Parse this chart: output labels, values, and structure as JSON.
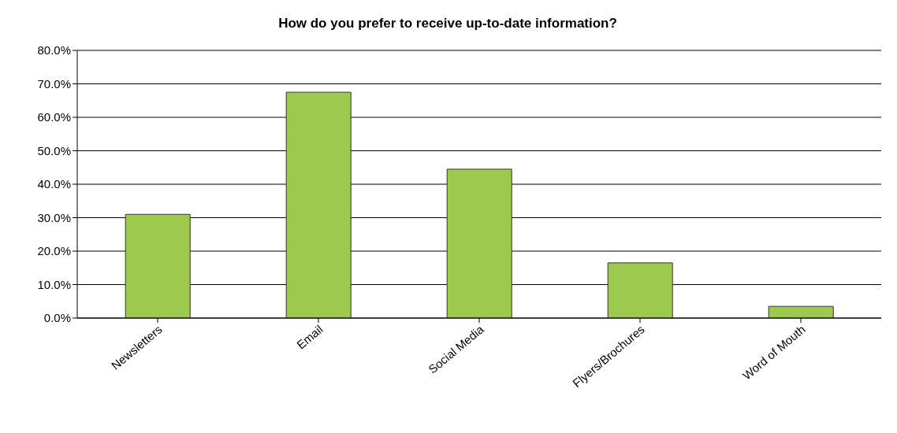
{
  "chart_data": {
    "type": "bar",
    "title": "How do you prefer to receive up-to-date information?",
    "categories": [
      "Newsletters",
      "Email",
      "Social Media",
      "Flyers/Brochures",
      "Word of Mouth"
    ],
    "values": [
      31,
      67.5,
      44.5,
      16.5,
      3.5
    ],
    "color": "#9cc94e",
    "ylim": [
      0,
      80
    ],
    "yticks": [
      {
        "value": 0,
        "label": "0.0%"
      },
      {
        "value": 10,
        "label": "10.0%"
      },
      {
        "value": 20,
        "label": "20.0%"
      },
      {
        "value": 30,
        "label": "30.0%"
      },
      {
        "value": 40,
        "label": "40.0%"
      },
      {
        "value": 50,
        "label": "50.0%"
      },
      {
        "value": 60,
        "label": "60.0%"
      },
      {
        "value": 70,
        "label": "70.0%"
      },
      {
        "value": 80,
        "label": "80.0%"
      }
    ],
    "grid": "y"
  }
}
